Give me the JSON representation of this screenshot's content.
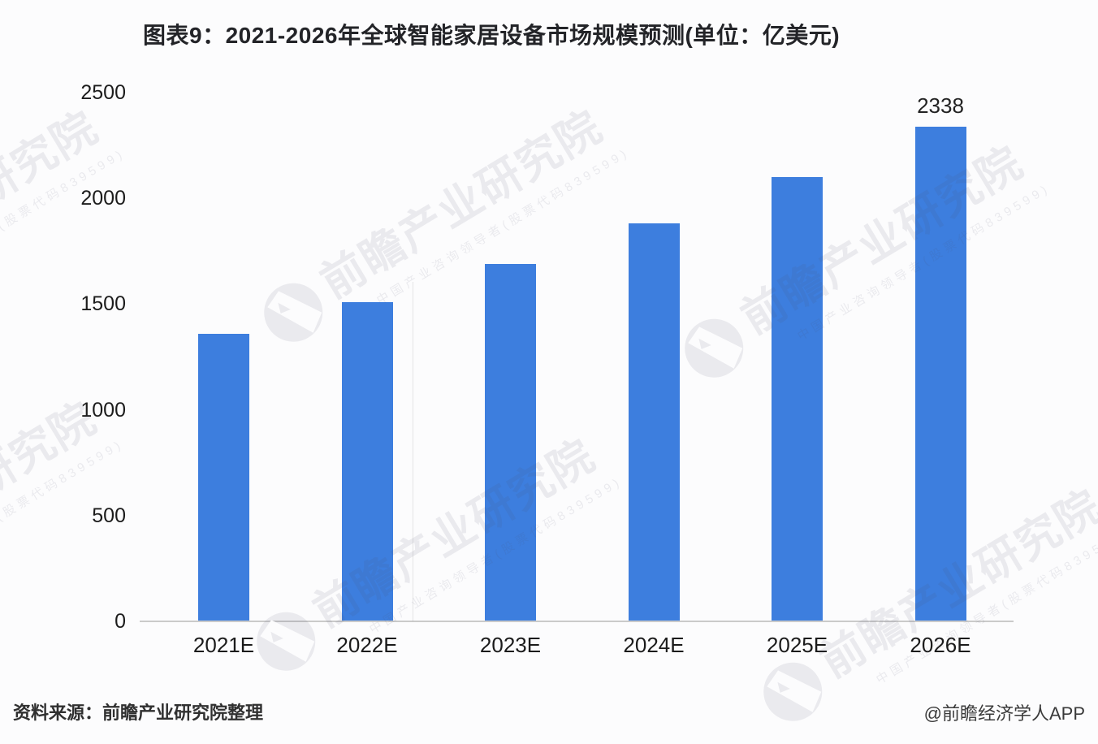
{
  "header": {
    "title": "图表9：2021-2026年全球智能家居设备市场规模预测(单位：亿美元)"
  },
  "footer": {
    "source_text": "资料来源：前瞻产业研究院整理",
    "credit_text": "@前瞻经济学人APP"
  },
  "watermark": {
    "logo_icon": "qianzhan-bird-logo",
    "main_text": "前瞻产业研究院",
    "sub_text": "中国产业咨询领导者(股票代码839599)"
  },
  "colors": {
    "bar": "#3d7ede",
    "axis": "#cacaca",
    "text": "#1c1c1c"
  },
  "chart_data": {
    "type": "bar",
    "title": "图表9：2021-2026年全球智能家居设备市场规模预测(单位：亿美元)",
    "unit": "亿美元",
    "categories": [
      "2021E",
      "2022E",
      "2023E",
      "2024E",
      "2025E",
      "2026E"
    ],
    "values": [
      1360,
      1510,
      1690,
      1880,
      2100,
      2338
    ],
    "annotations": [
      {
        "category": "2026E",
        "text": "2338"
      }
    ],
    "ylim": [
      0,
      2500
    ],
    "yticks": [
      0,
      500,
      1000,
      1500,
      2000,
      2500
    ],
    "grid": false,
    "legend": null,
    "bar_color": "#3d7ede"
  }
}
